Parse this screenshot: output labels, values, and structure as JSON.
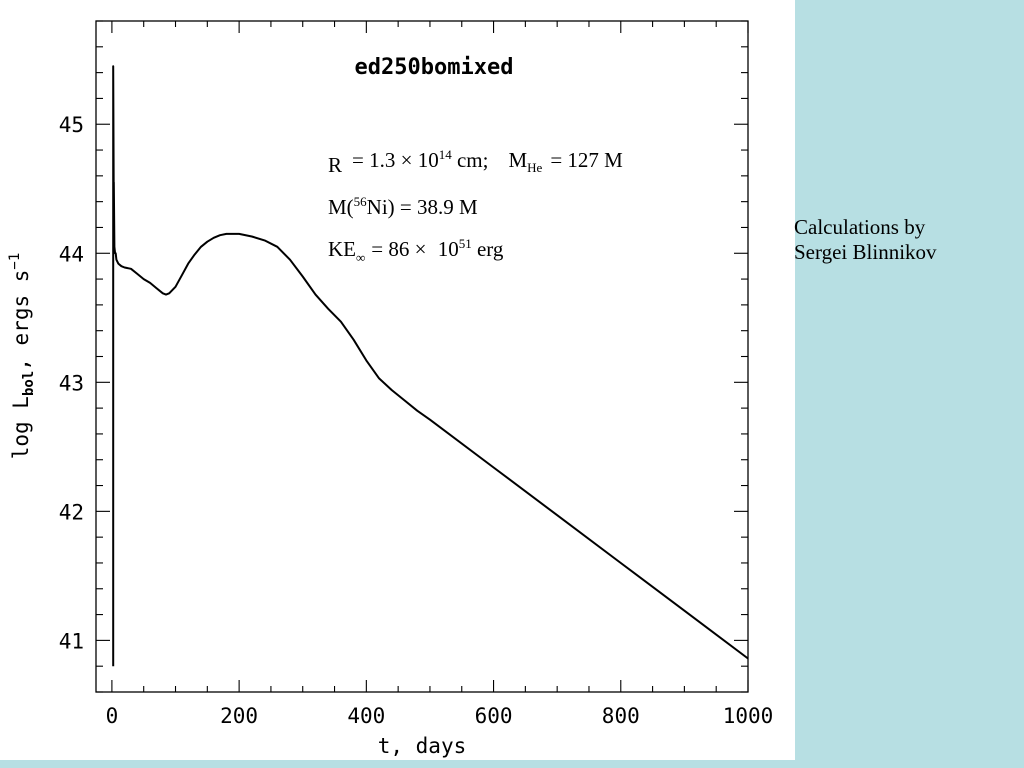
{
  "credit": {
    "line1": "Calculations by",
    "line2": "Sergei Blinnikov"
  },
  "colors": {
    "panel": "#ffffff",
    "background": "#b7dfe3",
    "ink": "#000000"
  },
  "chart_data": {
    "type": "line",
    "title": "ed250bomixed",
    "xlabel": "t, days",
    "ylabel": {
      "prefix": "log L",
      "sub": "bol",
      "suffix": ", ergs s",
      "sup": "−1"
    },
    "xlim": [
      -25,
      1000
    ],
    "ylim": [
      40.6,
      45.8
    ],
    "xticks": [
      0,
      200,
      400,
      600,
      800,
      1000
    ],
    "yticks": [
      41,
      42,
      43,
      44,
      45
    ],
    "xtick_labels": [
      "0",
      "200",
      "400",
      "600",
      "800",
      "1000"
    ],
    "ytick_labels": [
      "41",
      "42",
      "43",
      "44",
      "45"
    ],
    "grid": false,
    "annotations": {
      "line1": {
        "r": "R",
        "sun1": "",
        "eq1": "= 1.3 ",
        "times1": "×",
        "ten": " 10",
        "exp14": "14",
        "cm": " cm;",
        "m": "M",
        "he": "He",
        "eq2": "= 127 M",
        "sun2": ""
      },
      "line2": {
        "m": "M(",
        "exp56": "56",
        "ni": "Ni) = 38.9 M",
        "sun": ""
      },
      "line3": {
        "ke": "KE",
        "inf": "∞",
        "eq": "= 86 ",
        "times": "×",
        "ten": " 10",
        "exp51": "51",
        "erg": " erg"
      }
    },
    "series": [
      {
        "x": [
          2,
          2,
          3,
          3,
          4,
          5,
          6,
          7,
          10,
          15,
          20,
          30,
          40,
          50,
          60,
          70,
          80,
          85,
          90,
          100,
          110,
          120,
          130,
          140,
          150,
          160,
          170,
          180,
          190,
          200,
          220,
          240,
          260,
          280,
          300,
          320,
          340,
          360,
          380,
          400,
          420,
          440,
          460,
          480,
          500,
          600,
          700,
          800,
          900,
          1000
        ],
        "y": [
          40.8,
          45.45,
          44.3,
          44.55,
          44.05,
          44.0,
          44.0,
          43.95,
          43.92,
          43.9,
          43.89,
          43.88,
          43.84,
          43.8,
          43.77,
          43.73,
          43.69,
          43.68,
          43.69,
          43.74,
          43.83,
          43.92,
          43.99,
          44.05,
          44.09,
          44.12,
          44.14,
          44.15,
          44.15,
          44.15,
          44.13,
          44.1,
          44.05,
          43.95,
          43.82,
          43.68,
          43.57,
          43.47,
          43.33,
          43.17,
          43.03,
          42.94,
          42.86,
          42.78,
          42.71,
          42.34,
          41.97,
          41.6,
          41.23,
          40.86
        ]
      }
    ]
  }
}
